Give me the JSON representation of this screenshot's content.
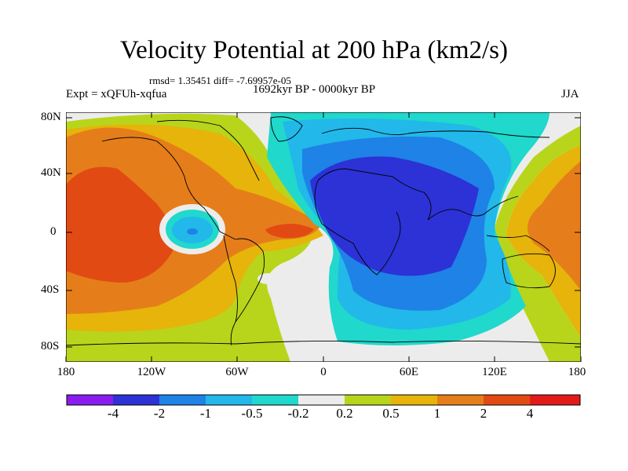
{
  "title": "Velocity Potential at 200 hPa (km2/s)",
  "stats": "rmsd= 1.35451 diff= -7.69957e-05",
  "experiment": "Expt = xQFUh-xqfua",
  "period": "1692kyr BP - 0000kyr BP",
  "season": "JJA",
  "y_axis_labels": [
    "80N",
    "40N",
    "0",
    "40S",
    "80S"
  ],
  "x_axis_labels": [
    "180",
    "120W",
    "60W",
    "0",
    "60E",
    "120E",
    "180"
  ],
  "colorbar": {
    "labels": [
      "-4",
      "-2",
      "-1",
      "-0.5",
      "-0.2",
      "0.2",
      "0.5",
      "1",
      "2",
      "4"
    ],
    "colors": [
      "#8a1cf0",
      "#2c32d6",
      "#1e82e6",
      "#22b8ea",
      "#20d8cc",
      "#ececec",
      "#b8d51c",
      "#e6b40a",
      "#e57e1a",
      "#e24a14",
      "#e31a1a"
    ]
  }
}
